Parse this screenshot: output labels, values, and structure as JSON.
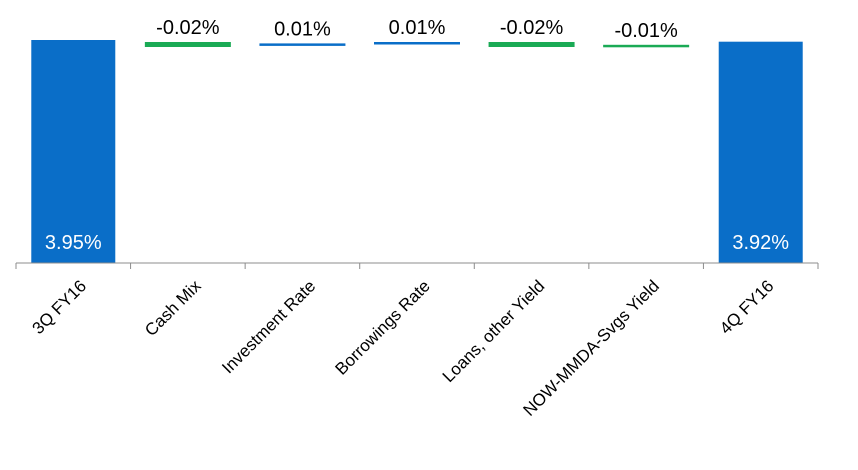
{
  "chart_data": {
    "type": "bar",
    "subtype": "waterfall",
    "title": "",
    "xlabel": "",
    "ylabel": "",
    "categories": [
      "3Q FY16",
      "Cash Mix",
      "Investment Rate",
      "Borrowings Rate",
      "Loans, other Yield",
      "NOW-MMDA-Svgs Yield",
      "4Q FY16"
    ],
    "values": [
      3.95,
      -0.02,
      0.01,
      0.01,
      -0.02,
      -0.01,
      3.92
    ],
    "labels": [
      "3.95%",
      "-0.02%",
      "0.01%",
      "0.01%",
      "-0.02%",
      "-0.01%",
      "3.92%"
    ],
    "kinds": [
      "total",
      "delta",
      "delta",
      "delta",
      "delta",
      "delta",
      "total"
    ],
    "ylim": [
      0,
      3.95
    ],
    "grid": false,
    "legend": "none",
    "colors": {
      "total": "#0A6EC8",
      "negative": "#1AAA55",
      "positive": "#0A6EC8",
      "axis": "#8C8C8C"
    }
  }
}
